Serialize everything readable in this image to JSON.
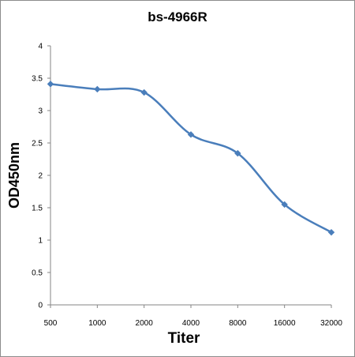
{
  "chart_data": {
    "type": "line",
    "title": "bs-4966R",
    "xlabel": "Titer",
    "ylabel": "OD450nm",
    "categories": [
      "500",
      "1000",
      "2000",
      "4000",
      "8000",
      "16000",
      "32000"
    ],
    "series": [
      {
        "values": [
          3.41,
          3.33,
          3.28,
          2.63,
          2.34,
          1.55,
          1.12
        ]
      }
    ],
    "ylim": [
      0,
      4
    ],
    "yticks": [
      "0",
      "0.5",
      "1",
      "1.5",
      "2",
      "2.5",
      "3",
      "3.5",
      "4"
    ],
    "grid": false,
    "smooth": true,
    "marker": "diamond",
    "colors": {
      "series": "#4a7ebb",
      "axis": "#868686"
    }
  }
}
